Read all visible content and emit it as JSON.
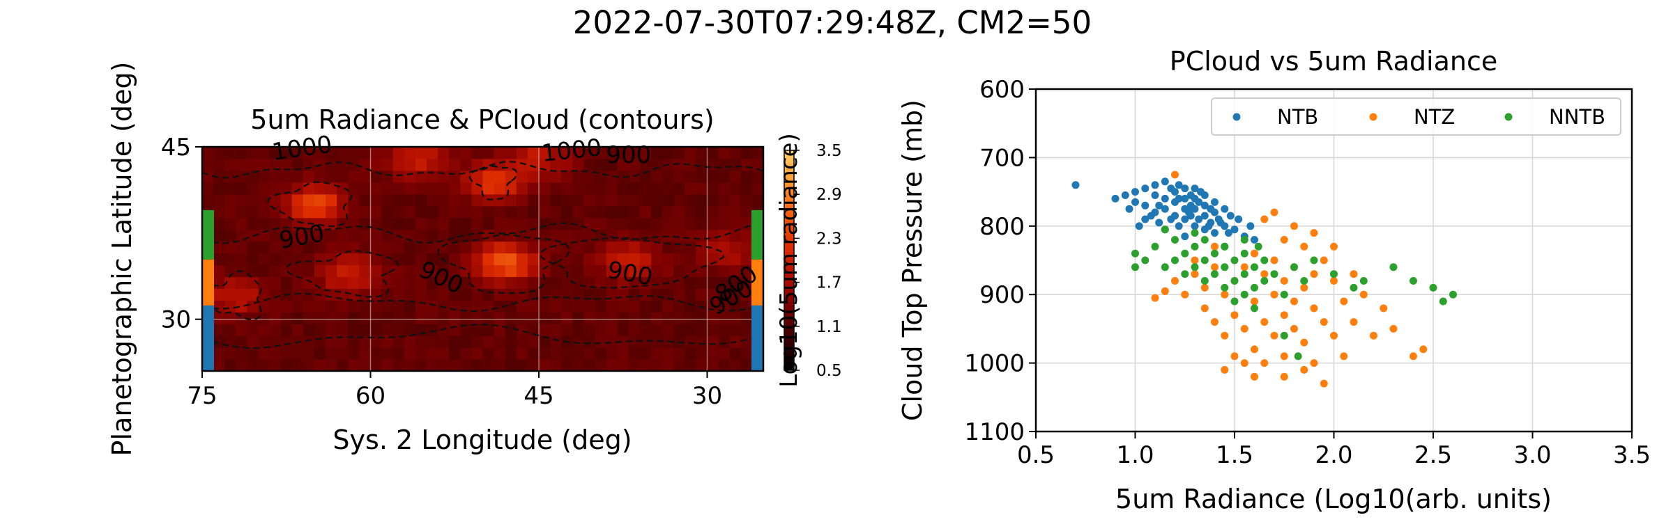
{
  "figure": {
    "suptitle": "2022-07-30T07:29:48Z, CM2=50"
  },
  "chart_data": [
    {
      "type": "heatmap",
      "title": "5um Radiance & PCloud (contours)",
      "xlabel": "Sys. 2 Longitude (deg)",
      "ylabel": "Planetographic Latitude (deg)",
      "xlim": [
        75,
        25
      ],
      "ylim": [
        25.5,
        45
      ],
      "x_ticks": [
        75,
        60,
        45,
        30
      ],
      "y_ticks": [
        30,
        45
      ],
      "grid": true,
      "colorbar": {
        "label": "Log10(5um radiance)",
        "range": [
          0.5,
          3.5
        ],
        "ticks": [
          "0.5",
          "1.1",
          "1.7",
          "2.3",
          "2.9",
          "3.5"
        ],
        "colors": [
          "#000000",
          "#3a0000",
          "#7a0000",
          "#b41000",
          "#e03000",
          "#f06010",
          "#ff9a30",
          "#ffd070"
        ]
      },
      "contour_labels": [
        "1000",
        "1000",
        "900",
        "900",
        "900",
        "900",
        "900",
        "800"
      ],
      "latitude_bands": [
        {
          "name": "NTB",
          "lat_range": [
            25.5,
            31.2
          ],
          "color": "#1f77b4"
        },
        {
          "name": "NTZ",
          "lat_range": [
            31.2,
            35.2
          ],
          "color": "#ff7f0e"
        },
        {
          "name": "NNTB",
          "lat_range": [
            35.2,
            39.5
          ],
          "color": "#2ca02c"
        }
      ],
      "hotspots": [
        {
          "lon": 65,
          "lat": 40,
          "value": 2.5
        },
        {
          "lon": 49,
          "lat": 42,
          "value": 2.3
        },
        {
          "lon": 48,
          "lat": 35,
          "value": 2.6
        },
        {
          "lon": 62,
          "lat": 34,
          "value": 2.0
        },
        {
          "lon": 37,
          "lat": 35,
          "value": 2.0
        },
        {
          "lon": 72,
          "lat": 32,
          "value": 1.9
        },
        {
          "lon": 56,
          "lat": 44,
          "value": 2.0
        },
        {
          "lon": 45,
          "lat": 44,
          "value": 1.9
        },
        {
          "lon": 28,
          "lat": 36,
          "value": 1.7
        }
      ]
    },
    {
      "type": "scatter",
      "title": "PCloud vs 5um Radiance",
      "xlabel": "5um Radiance (Log10(arb. units)",
      "ylabel": "Cloud Top Pressure (mb)",
      "xlim": [
        0.5,
        3.5
      ],
      "ylim": [
        1100,
        600
      ],
      "x_ticks": [
        "0.5",
        "1.0",
        "1.5",
        "2.0",
        "2.5",
        "3.0",
        "3.5"
      ],
      "y_ticks": [
        "600",
        "700",
        "800",
        "900",
        "1000",
        "1100"
      ],
      "grid": true,
      "legend_position": "top-right",
      "series": [
        {
          "name": "NTB",
          "color": "#1f77b4",
          "points": [
            [
              0.7,
              740
            ],
            [
              0.9,
              760
            ],
            [
              0.95,
              755
            ],
            [
              1.0,
              750
            ],
            [
              1.0,
              765
            ],
            [
              1.05,
              745
            ],
            [
              1.05,
              770
            ],
            [
              1.1,
              740
            ],
            [
              1.1,
              755
            ],
            [
              1.1,
              780
            ],
            [
              1.12,
              795
            ],
            [
              1.15,
              735
            ],
            [
              1.15,
              760
            ],
            [
              1.15,
              775
            ],
            [
              1.18,
              745
            ],
            [
              1.2,
              750
            ],
            [
              1.2,
              765
            ],
            [
              1.2,
              785
            ],
            [
              1.22,
              740
            ],
            [
              1.22,
              800
            ],
            [
              1.25,
              745
            ],
            [
              1.25,
              760
            ],
            [
              1.25,
              775
            ],
            [
              1.25,
              790
            ],
            [
              1.28,
              755
            ],
            [
              1.28,
              770
            ],
            [
              1.28,
              785
            ],
            [
              1.3,
              745
            ],
            [
              1.3,
              760
            ],
            [
              1.3,
              775
            ],
            [
              1.3,
              800
            ],
            [
              1.32,
              765
            ],
            [
              1.32,
              790
            ],
            [
              1.35,
              755
            ],
            [
              1.35,
              770
            ],
            [
              1.35,
              785
            ],
            [
              1.35,
              805
            ],
            [
              1.38,
              775
            ],
            [
              1.38,
              795
            ],
            [
              1.4,
              765
            ],
            [
              1.4,
              780
            ],
            [
              1.4,
              810
            ],
            [
              1.42,
              790
            ],
            [
              1.45,
              775
            ],
            [
              1.45,
              800
            ],
            [
              1.48,
              785
            ],
            [
              1.5,
              805
            ],
            [
              1.52,
              790
            ],
            [
              1.55,
              815
            ],
            [
              1.58,
              800
            ],
            [
              1.6,
              820
            ],
            [
              1.12,
              770
            ],
            [
              1.18,
              790
            ],
            [
              1.08,
              785
            ],
            [
              1.02,
              800
            ],
            [
              1.22,
              760
            ],
            [
              1.27,
              780
            ],
            [
              1.33,
              750
            ],
            [
              1.43,
              795
            ],
            [
              1.37,
              800
            ],
            [
              1.47,
              810
            ],
            [
              1.15,
              805
            ],
            [
              1.25,
              815
            ],
            [
              1.05,
              790
            ],
            [
              0.97,
              775
            ]
          ]
        },
        {
          "name": "NTZ",
          "color": "#ff7f0e",
          "points": [
            [
              1.2,
              725
            ],
            [
              1.1,
              905
            ],
            [
              1.15,
              895
            ],
            [
              1.2,
              880
            ],
            [
              1.25,
              900
            ],
            [
              1.3,
              870
            ],
            [
              1.35,
              890
            ],
            [
              1.35,
              920
            ],
            [
              1.4,
              860
            ],
            [
              1.4,
              940
            ],
            [
              1.45,
              900
            ],
            [
              1.45,
              960
            ],
            [
              1.5,
              880
            ],
            [
              1.5,
              930
            ],
            [
              1.5,
              990
            ],
            [
              1.55,
              860
            ],
            [
              1.55,
              950
            ],
            [
              1.6,
              840
            ],
            [
              1.6,
              910
            ],
            [
              1.6,
              980
            ],
            [
              1.65,
              870
            ],
            [
              1.65,
              940
            ],
            [
              1.65,
              1000
            ],
            [
              1.7,
              850
            ],
            [
              1.7,
              900
            ],
            [
              1.7,
              960
            ],
            [
              1.75,
              820
            ],
            [
              1.75,
              880
            ],
            [
              1.75,
              930
            ],
            [
              1.75,
              990
            ],
            [
              1.8,
              860
            ],
            [
              1.8,
              910
            ],
            [
              1.8,
              950
            ],
            [
              1.85,
              830
            ],
            [
              1.85,
              890
            ],
            [
              1.85,
              970
            ],
            [
              1.9,
              870
            ],
            [
              1.9,
              920
            ],
            [
              1.9,
              1000
            ],
            [
              1.95,
              850
            ],
            [
              1.95,
              940
            ],
            [
              1.95,
              1030
            ],
            [
              2.0,
              880
            ],
            [
              2.0,
              960
            ],
            [
              2.05,
              910
            ],
            [
              2.05,
              990
            ],
            [
              2.1,
              870
            ],
            [
              2.1,
              940
            ],
            [
              2.15,
              900
            ],
            [
              2.2,
              960
            ],
            [
              2.25,
              920
            ],
            [
              2.3,
              950
            ],
            [
              2.4,
              990
            ],
            [
              2.45,
              980
            ],
            [
              1.7,
              780
            ],
            [
              1.65,
              790
            ],
            [
              1.8,
              800
            ],
            [
              1.9,
              810
            ],
            [
              1.55,
              1000
            ],
            [
              1.6,
              1020
            ],
            [
              1.45,
              1010
            ],
            [
              1.75,
              1020
            ],
            [
              1.85,
              1010
            ],
            [
              2.0,
              830
            ],
            [
              1.3,
              850
            ],
            [
              1.4,
              830
            ]
          ]
        },
        {
          "name": "NNTB",
          "color": "#2ca02c",
          "points": [
            [
              1.0,
              840
            ],
            [
              1.0,
              860
            ],
            [
              1.05,
              850
            ],
            [
              1.1,
              830
            ],
            [
              1.15,
              860
            ],
            [
              1.2,
              820
            ],
            [
              1.2,
              850
            ],
            [
              1.25,
              840
            ],
            [
              1.25,
              870
            ],
            [
              1.3,
              830
            ],
            [
              1.3,
              860
            ],
            [
              1.35,
              820
            ],
            [
              1.35,
              850
            ],
            [
              1.35,
              880
            ],
            [
              1.4,
              840
            ],
            [
              1.4,
              870
            ],
            [
              1.45,
              830
            ],
            [
              1.45,
              860
            ],
            [
              1.45,
              890
            ],
            [
              1.5,
              850
            ],
            [
              1.5,
              880
            ],
            [
              1.5,
              910
            ],
            [
              1.55,
              840
            ],
            [
              1.55,
              870
            ],
            [
              1.55,
              900
            ],
            [
              1.6,
              860
            ],
            [
              1.6,
              890
            ],
            [
              1.65,
              850
            ],
            [
              1.65,
              880
            ],
            [
              1.7,
              870
            ],
            [
              1.75,
              900
            ],
            [
              1.8,
              860
            ],
            [
              1.85,
              880
            ],
            [
              1.9,
              850
            ],
            [
              2.0,
              870
            ],
            [
              2.1,
              890
            ],
            [
              2.15,
              880
            ],
            [
              2.3,
              860
            ],
            [
              2.4,
              880
            ],
            [
              2.5,
              890
            ],
            [
              2.55,
              910
            ],
            [
              2.6,
              900
            ],
            [
              1.75,
              960
            ],
            [
              1.82,
              990
            ],
            [
              1.6,
              920
            ],
            [
              1.45,
              830
            ],
            [
              1.3,
              810
            ],
            [
              1.15,
              805
            ],
            [
              1.55,
              820
            ],
            [
              1.62,
              830
            ]
          ]
        }
      ]
    }
  ]
}
